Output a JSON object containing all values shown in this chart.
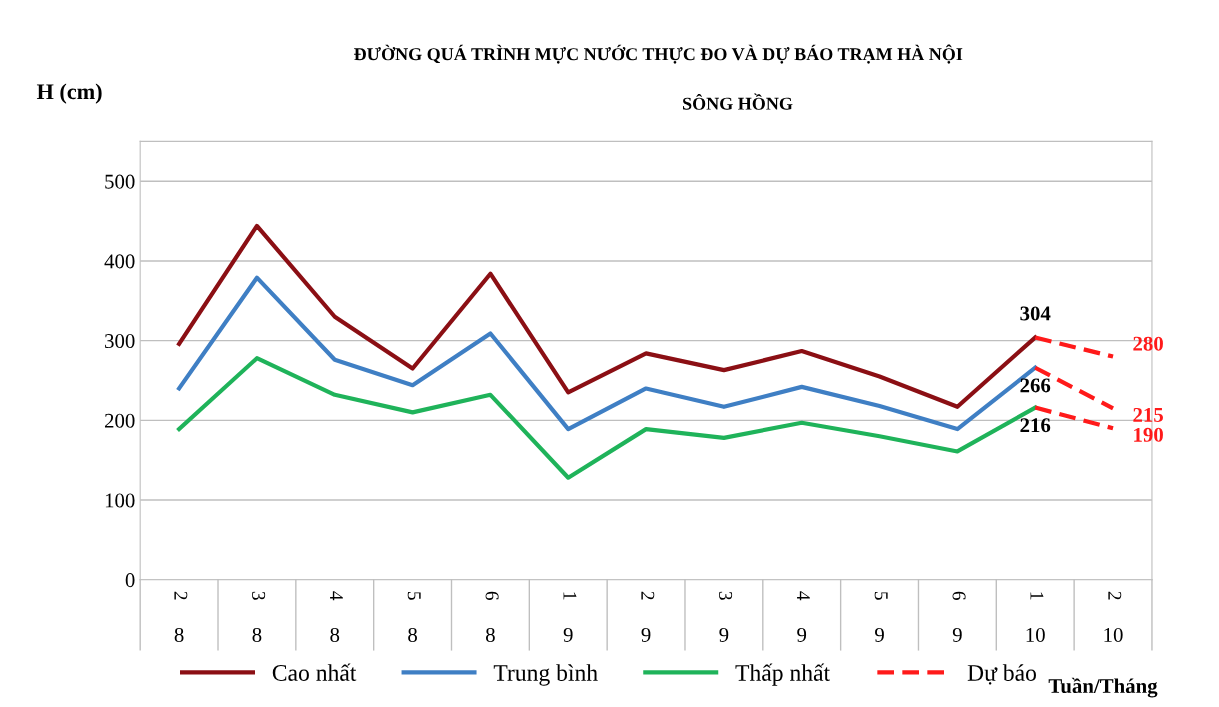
{
  "chart_data": {
    "type": "line",
    "title": "ĐƯỜNG QUÁ TRÌNH MỰC NƯỚC THỰC ĐO VÀ DỰ BÁO TRẠM HÀ NỘI",
    "subtitle": "SÔNG HỒNG",
    "ylabel": "H (cm)",
    "xlabel": "Tuần/Tháng",
    "categories": [
      "2\n8",
      "3\n8",
      "4\n8",
      "5\n8",
      "6\n8",
      "1\n9",
      "2\n9",
      "3\n9",
      "4\n9",
      "5\n9",
      "6\n9",
      "1\n10",
      "2\n10"
    ],
    "series": [
      {
        "name": "Cao nhất",
        "color": "#8b0f14",
        "values": [
          296,
          444,
          330,
          265,
          384,
          235,
          284,
          263,
          287,
          255,
          217,
          304,
          null
        ],
        "value_labels": [
          null,
          null,
          null,
          null,
          null,
          null,
          null,
          null,
          null,
          null,
          null,
          "304",
          null
        ]
      },
      {
        "name": "Trung bình",
        "color": "#3f7fc4",
        "values": [
          240,
          379,
          276,
          244,
          309,
          189,
          240,
          217,
          242,
          218,
          189,
          266,
          null
        ],
        "value_labels": [
          null,
          null,
          null,
          null,
          null,
          null,
          null,
          null,
          null,
          null,
          null,
          "266",
          null
        ]
      },
      {
        "name": "Thấp nhất",
        "color": "#1fb35a",
        "values": [
          189,
          278,
          232,
          210,
          232,
          128,
          189,
          178,
          197,
          180,
          161,
          216,
          null
        ],
        "value_labels": [
          null,
          null,
          null,
          null,
          null,
          null,
          null,
          null,
          null,
          null,
          null,
          "216",
          null
        ]
      },
      {
        "name": "Dự báo",
        "color": "#ff1a1a",
        "line_style": "dashed",
        "values": [
          null,
          null,
          null,
          null,
          null,
          null,
          null,
          null,
          null,
          null,
          null,
          304,
          280
        ],
        "value_labels": [
          null,
          null,
          null,
          null,
          null,
          null,
          null,
          null,
          null,
          null,
          null,
          null,
          "280"
        ]
      },
      {
        "color": "#ff1a1a",
        "line_style": "dashed",
        "values": [
          null,
          null,
          null,
          null,
          null,
          null,
          null,
          null,
          null,
          null,
          null,
          266,
          215
        ],
        "value_labels": [
          null,
          null,
          null,
          null,
          null,
          null,
          null,
          null,
          null,
          null,
          null,
          null,
          "215"
        ]
      },
      {
        "color": "#ff1a1a",
        "line_style": "dashed",
        "values": [
          null,
          null,
          null,
          null,
          null,
          null,
          null,
          null,
          null,
          null,
          null,
          216,
          190
        ],
        "value_labels": [
          null,
          null,
          null,
          null,
          null,
          null,
          null,
          null,
          null,
          null,
          null,
          null,
          "190"
        ]
      }
    ],
    "ylim": [
      0,
      550
    ],
    "yticks": [
      0,
      100,
      200,
      300,
      400,
      500
    ],
    "grid": "y",
    "legend": "bottom",
    "marker": "none"
  }
}
